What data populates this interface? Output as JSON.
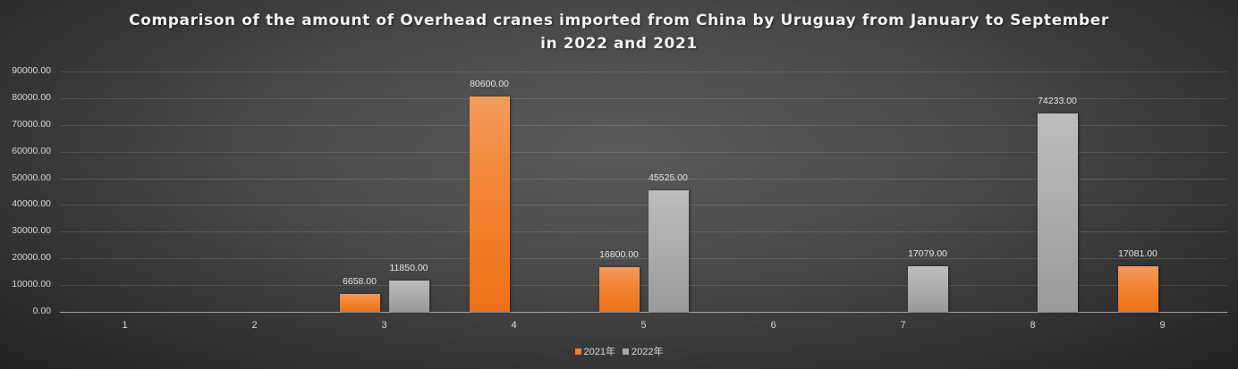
{
  "title": {
    "line1": "Comparison of the amount of Overhead cranes imported from China by Uruguay from January to September",
    "line2": "in 2022 and 2021"
  },
  "y_ticks": [
    "90000.00",
    "80000.00",
    "70000.00",
    "60000.00",
    "50000.00",
    "40000.00",
    "30000.00",
    "20000.00",
    "10000.00",
    "0.00"
  ],
  "x_ticks": [
    "1",
    "2",
    "3",
    "4",
    "5",
    "6",
    "7",
    "8",
    "9"
  ],
  "legend": [
    {
      "label": "2021年",
      "color": "#ed7d31"
    },
    {
      "label": "2022年",
      "color": "#a5a5a5"
    }
  ],
  "data_labels": {
    "m3_2021": "6658.00",
    "m3_2022": "11850.00",
    "m4_2021": "80600.00",
    "m5_2021": "16800.00",
    "m5_2022": "45525.00",
    "m7_2022": "17079.00",
    "m8_2022": "74233.00",
    "m9_2021": "17081.00"
  },
  "chart_data": {
    "type": "bar",
    "title": "Comparison of the amount of Overhead cranes imported from China by Uruguay from January to September in 2022 and 2021",
    "xlabel": "",
    "ylabel": "",
    "categories": [
      "1",
      "2",
      "3",
      "4",
      "5",
      "6",
      "7",
      "8",
      "9"
    ],
    "series": [
      {
        "name": "2021年",
        "color": "#ed7d31",
        "values": [
          0,
          0,
          6658.0,
          80600.0,
          16800.0,
          0,
          0,
          0,
          17081.0
        ]
      },
      {
        "name": "2022年",
        "color": "#a5a5a5",
        "values": [
          0,
          0,
          11850.0,
          0,
          45525.0,
          0,
          17079.0,
          74233.0,
          0
        ]
      }
    ],
    "ylim": [
      0,
      90000
    ],
    "y_tick_step": 10000,
    "grid": true,
    "legend_position": "bottom"
  }
}
